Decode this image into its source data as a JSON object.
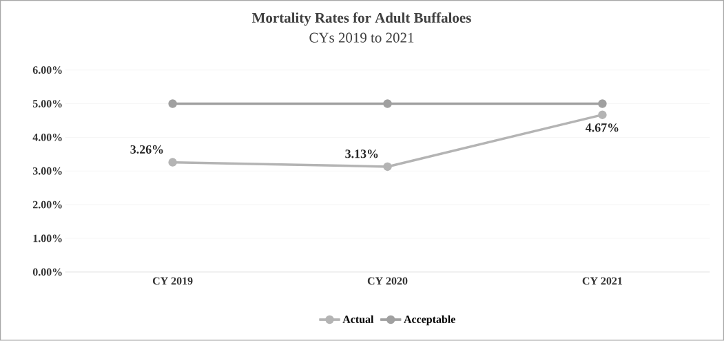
{
  "chart_data": {
    "type": "line",
    "title": "Mortality Rates for Adult Buffaloes",
    "subtitle": "CYs 2019 to 2021",
    "categories": [
      "CY 2019",
      "CY 2020",
      "CY 2021"
    ],
    "series": [
      {
        "name": "Actual",
        "color": "#b4b4b4",
        "values": [
          3.26,
          3.13,
          4.67
        ],
        "value_labels": [
          "3.26%",
          "3.13%",
          "4.67%"
        ]
      },
      {
        "name": "Acceptable",
        "color": "#a0a0a0",
        "values": [
          5,
          5,
          5
        ]
      }
    ],
    "ylim": [
      0,
      6
    ],
    "yticks": [
      {
        "value": 0,
        "label": "0.00%"
      },
      {
        "value": 1,
        "label": "1.00%"
      },
      {
        "value": 2,
        "label": "2.00%"
      },
      {
        "value": 3,
        "label": "3.00%"
      },
      {
        "value": 4,
        "label": "4.00%"
      },
      {
        "value": 5,
        "label": "5.00%"
      },
      {
        "value": 6,
        "label": "6.00%"
      }
    ],
    "grid": "y",
    "legend": "bottom",
    "marker": "circle",
    "line_style": "solid"
  }
}
